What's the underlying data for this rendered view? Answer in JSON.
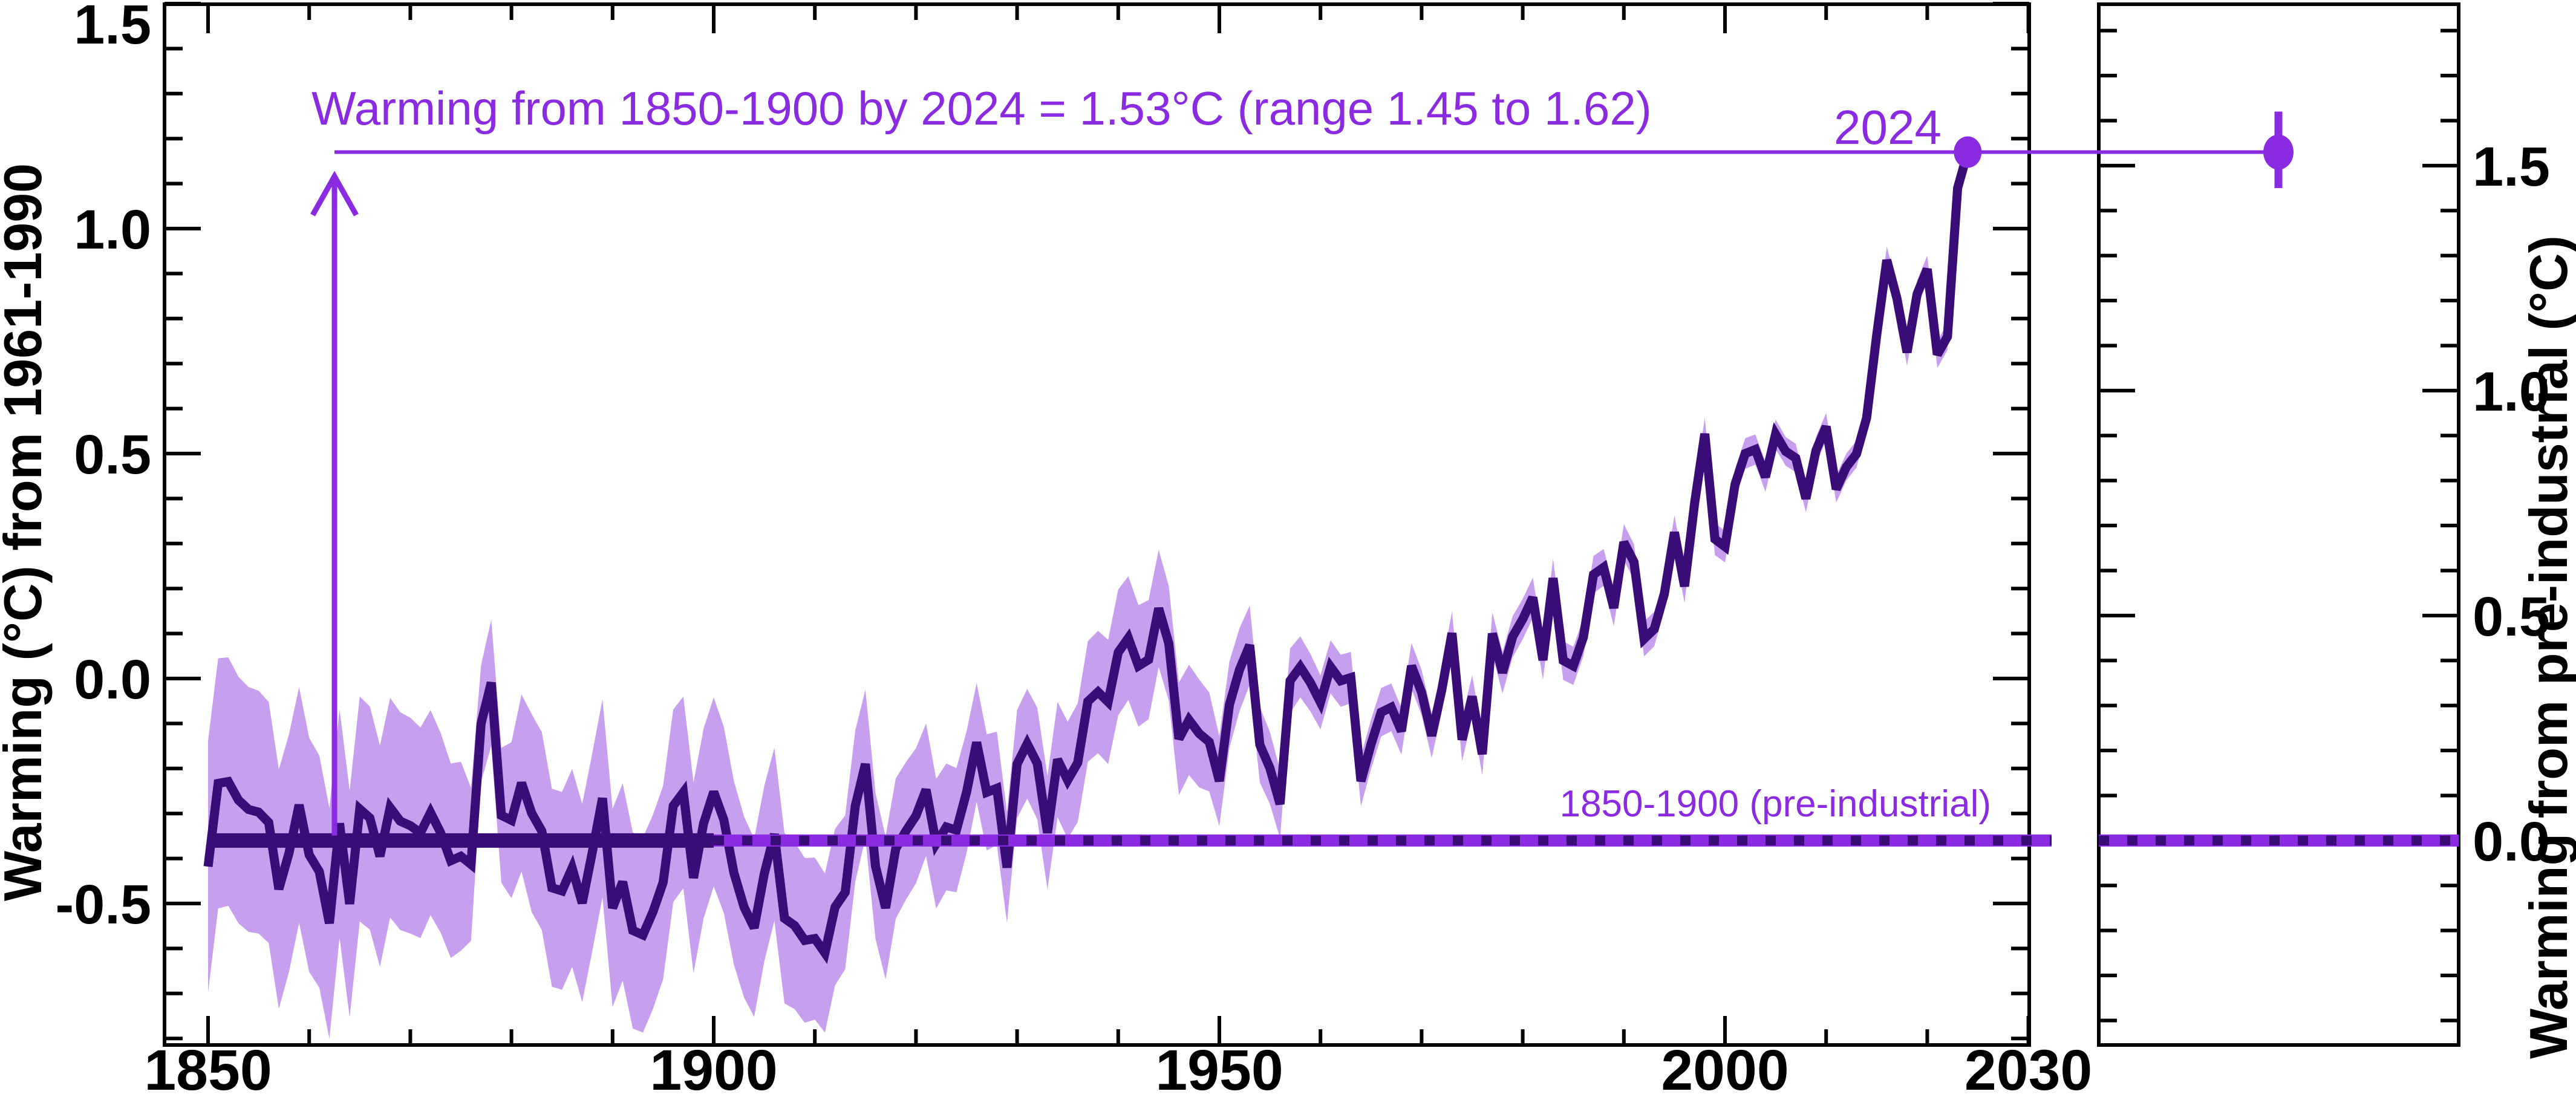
{
  "chart_data": {
    "type": "line",
    "title": "Warming from 1850-1900 by 2024 = 1.53°C (range 1.45 to 1.62)",
    "grid": false,
    "legend": null,
    "left_axis": {
      "label": "Warming (°C) from 1961-1990",
      "range": [
        -0.82,
        1.5
      ],
      "major_tick_values": [
        -0.5,
        0.0,
        0.5,
        1.0,
        1.5
      ],
      "major_tick_labels": [
        "-0.5",
        "0.0",
        "0.5",
        "1.0",
        "1.5"
      ],
      "minor_step": 0.1
    },
    "bottom_axis": {
      "range": [
        1845.7,
        2030.7
      ],
      "major_tick_values": [
        1850,
        1900,
        1950,
        2000,
        2030
      ],
      "major_tick_labels": [
        "1850",
        "1900",
        "1950",
        "2000",
        "2030"
      ],
      "minor_step": 10
    },
    "right_axis": {
      "label": "Warming from pre-industrial (°C)",
      "offset_from_left_scale": 0.36,
      "range": [
        -0.46,
        1.86
      ],
      "major_tick_values": [
        0.0,
        0.5,
        1.0,
        1.5
      ],
      "major_tick_labels": [
        "0.0",
        "0.5",
        "1.0",
        "1.5"
      ],
      "minor_step": 0.1
    },
    "baseline": {
      "value_on_left_scale": -0.36,
      "label": "1850-1900 (pre-industrial)",
      "solid_segment_years": [
        1850,
        1900
      ]
    },
    "annotation": {
      "end_label": "2024",
      "line_value_on_left_scale": 1.17,
      "arrow_year": 1862.5,
      "summary_value_preindustrial": 1.53,
      "summary_range_preindustrial": [
        1.45,
        1.62
      ],
      "side_point_value_preindustrial": 1.53
    },
    "series": [
      {
        "name": "annual-global-mean-warming",
        "start_year": 1850,
        "end_year": 2024,
        "values": [
          -0.418,
          -0.233,
          -0.229,
          -0.27,
          -0.291,
          -0.297,
          -0.32,
          -0.468,
          -0.388,
          -0.281,
          -0.392,
          -0.429,
          -0.544,
          -0.322,
          -0.501,
          -0.29,
          -0.31,
          -0.395,
          -0.287,
          -0.317,
          -0.327,
          -0.343,
          -0.298,
          -0.343,
          -0.405,
          -0.395,
          -0.413,
          -0.1,
          -0.009,
          -0.304,
          -0.315,
          -0.232,
          -0.299,
          -0.339,
          -0.465,
          -0.472,
          -0.421,
          -0.499,
          -0.385,
          -0.266,
          -0.51,
          -0.452,
          -0.56,
          -0.57,
          -0.518,
          -0.453,
          -0.283,
          -0.253,
          -0.443,
          -0.322,
          -0.252,
          -0.314,
          -0.432,
          -0.508,
          -0.554,
          -0.434,
          -0.346,
          -0.533,
          -0.549,
          -0.582,
          -0.578,
          -0.61,
          -0.508,
          -0.475,
          -0.283,
          -0.19,
          -0.417,
          -0.51,
          -0.378,
          -0.339,
          -0.305,
          -0.247,
          -0.367,
          -0.33,
          -0.337,
          -0.253,
          -0.142,
          -0.253,
          -0.244,
          -0.42,
          -0.19,
          -0.145,
          -0.189,
          -0.343,
          -0.18,
          -0.226,
          -0.187,
          -0.051,
          -0.03,
          -0.052,
          0.058,
          0.09,
          0.028,
          0.042,
          0.156,
          0.078,
          -0.134,
          -0.092,
          -0.122,
          -0.141,
          -0.228,
          -0.058,
          0.02,
          0.074,
          -0.147,
          -0.199,
          -0.279,
          -0.005,
          0.026,
          -0.009,
          -0.053,
          0.026,
          -0.005,
          0.002,
          -0.228,
          -0.146,
          -0.075,
          -0.064,
          -0.117,
          0.028,
          -0.031,
          -0.127,
          -0.025,
          0.101,
          -0.136,
          -0.04,
          -0.168,
          0.1,
          0.013,
          0.093,
          0.132,
          0.18,
          0.041,
          0.223,
          0.04,
          0.028,
          0.092,
          0.231,
          0.247,
          0.157,
          0.303,
          0.259,
          0.088,
          0.11,
          0.188,
          0.325,
          0.205,
          0.39,
          0.544,
          0.31,
          0.293,
          0.432,
          0.5,
          0.509,
          0.448,
          0.543,
          0.505,
          0.49,
          0.4,
          0.507,
          0.56,
          0.421,
          0.47,
          0.499,
          0.579,
          0.763,
          0.93,
          0.845,
          0.725,
          0.855,
          0.91,
          0.72,
          0.76,
          1.09,
          1.17
        ],
        "band_half_width_anchors": [
          [
            1850,
            0.28
          ],
          [
            1860,
            0.26
          ],
          [
            1870,
            0.24
          ],
          [
            1875,
            0.21
          ],
          [
            1877,
            0.13
          ],
          [
            1879,
            0.15
          ],
          [
            1882,
            0.22
          ],
          [
            1890,
            0.22
          ],
          [
            1900,
            0.21
          ],
          [
            1910,
            0.18
          ],
          [
            1920,
            0.15
          ],
          [
            1930,
            0.12
          ],
          [
            1940,
            0.14
          ],
          [
            1948,
            0.12
          ],
          [
            1950,
            0.1
          ],
          [
            1960,
            0.06
          ],
          [
            1970,
            0.05
          ],
          [
            1980,
            0.045
          ],
          [
            1990,
            0.04
          ],
          [
            2000,
            0.035
          ],
          [
            2010,
            0.03
          ],
          [
            2024,
            0.03
          ]
        ]
      }
    ],
    "colors": {
      "accent_purple": "#8A2BE2",
      "line_dark_purple": "#3A0C77",
      "band_light_purple": "#C79FEF",
      "axis_black": "#000000",
      "background": "#FFFFFF"
    }
  }
}
